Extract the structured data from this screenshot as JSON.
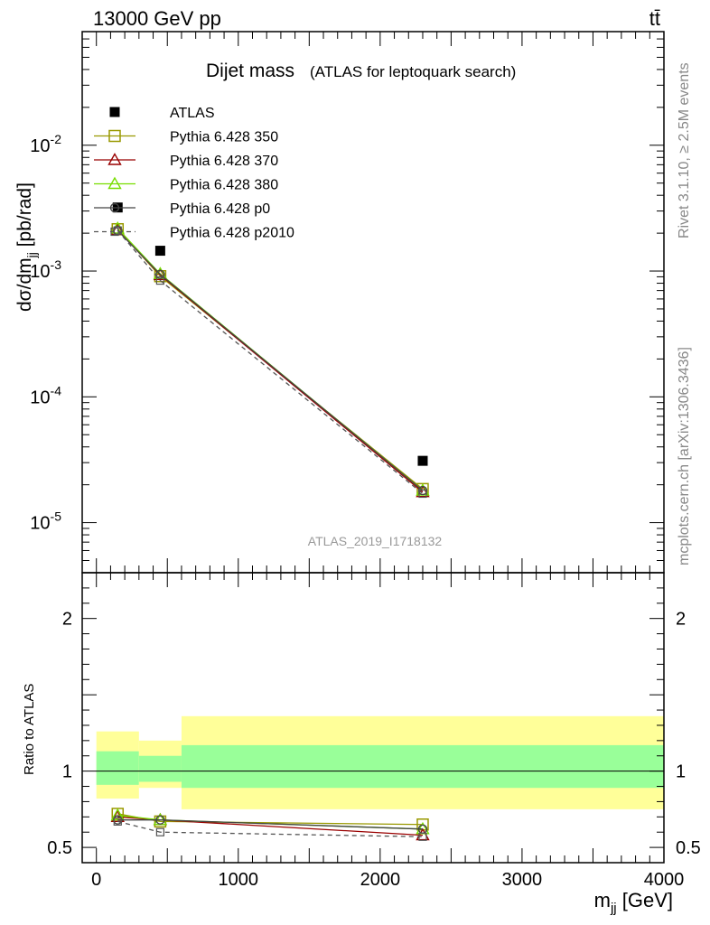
{
  "header": {
    "left": "13000 GeV pp",
    "right": "tt̄"
  },
  "title": {
    "main": "Dijet mass",
    "sub": "(ATLAS for leptoquark search)"
  },
  "side_labels": {
    "rivet": "Rivet 3.1.10, ≥ 2.5M events",
    "mcplots": "mcplots.cern.ch [arXiv:1306.3436]"
  },
  "watermark": "ATLAS_2019_I1718132",
  "colors": {
    "atlas": "#000000",
    "p350": "#999900",
    "p370": "#990000",
    "p380": "#77dd00",
    "p0": "#444444",
    "p2010": "#555555",
    "band_inner": "#99ff99",
    "band_outer": "#ffff99"
  },
  "chart_data": [
    {
      "type": "line",
      "panel": "main",
      "ylabel": "dσ/dm_jj [pb/rad]",
      "yscale": "log",
      "xlim": [
        -100,
        4000
      ],
      "ylim": [
        4e-06,
        0.08
      ],
      "y_tick_labels": [
        "10^-5",
        "10^-4",
        "10^-3",
        "10^-2"
      ],
      "legend_position": "top-left",
      "x": [
        150,
        450,
        2300
      ],
      "series": [
        {
          "name": "ATLAS",
          "marker": "filled-square",
          "line": "none",
          "values": [
            0.0032,
            0.00145,
            3.1e-05
          ]
        },
        {
          "name": "Pythia 6.428 350",
          "marker": "open-square",
          "line": "solid",
          "values": [
            0.00215,
            0.00091,
            1.85e-05
          ]
        },
        {
          "name": "Pythia 6.428 370",
          "marker": "open-triangle",
          "line": "solid",
          "values": [
            0.00212,
            0.00093,
            1.75e-05
          ]
        },
        {
          "name": "Pythia 6.428 380",
          "marker": "open-triangle",
          "line": "solid",
          "values": [
            0.00218,
            0.00095,
            1.8e-05
          ]
        },
        {
          "name": "Pythia 6.428 p0",
          "marker": "open-circle",
          "line": "solid",
          "values": [
            0.0021,
            0.00094,
            1.8e-05
          ]
        },
        {
          "name": "Pythia 6.428 p2010",
          "marker": "open-square-small",
          "line": "dashed",
          "values": [
            0.0021,
            0.00084,
            1.7e-05
          ]
        }
      ]
    },
    {
      "type": "line",
      "panel": "ratio",
      "ylabel": "Ratio to ATLAS",
      "xlabel": "m_jj [GeV]",
      "xlim": [
        -100,
        4000
      ],
      "ylim": [
        0.4,
        2.3
      ],
      "x_ticks": [
        0,
        1000,
        2000,
        3000,
        4000
      ],
      "x_tick_labels": [
        "0",
        "1000",
        "2000",
        "3000",
        "4000"
      ],
      "y_ticks": [
        0.5,
        1,
        2
      ],
      "y_tick_labels": [
        "0.5",
        "1",
        "2"
      ],
      "uncertainty_bands": [
        {
          "x": [
            0,
            300
          ],
          "inner": [
            0.91,
            1.13
          ],
          "outer": [
            0.82,
            1.26
          ]
        },
        {
          "x": [
            300,
            600
          ],
          "inner": [
            0.93,
            1.1
          ],
          "outer": [
            0.89,
            1.2
          ]
        },
        {
          "x": [
            600,
            4000
          ],
          "inner": [
            0.89,
            1.17
          ],
          "outer": [
            0.75,
            1.36
          ]
        }
      ],
      "x": [
        150,
        450,
        2300
      ],
      "series": [
        {
          "name": "Pythia 6.428 350",
          "values": [
            0.72,
            0.67,
            0.65
          ]
        },
        {
          "name": "Pythia 6.428 370",
          "values": [
            0.7,
            0.68,
            0.58
          ]
        },
        {
          "name": "Pythia 6.428 380",
          "values": [
            0.71,
            0.68,
            0.62
          ]
        },
        {
          "name": "Pythia 6.428 p0",
          "values": [
            0.68,
            0.68,
            0.62
          ]
        },
        {
          "name": "Pythia 6.428 p2010",
          "values": [
            0.67,
            0.6,
            0.57
          ]
        }
      ]
    }
  ]
}
